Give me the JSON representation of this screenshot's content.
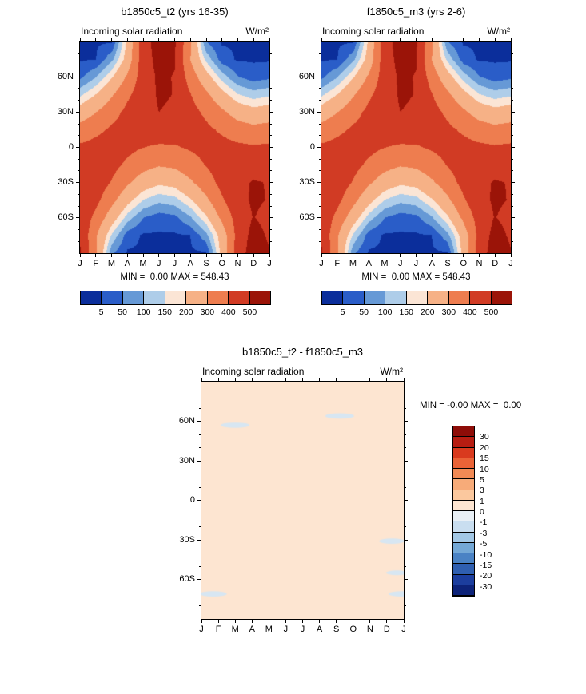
{
  "figure": {
    "background": "#ffffff"
  },
  "chart_data": [
    {
      "type": "heatmap",
      "title": "b1850c5_t2 (yrs 16-35)",
      "field": "Incoming solar radiation",
      "units": "W/m²",
      "minmax_text": "MIN =  0.00 MAX = 548.43",
      "min": 0.0,
      "max": 548.43,
      "x": [
        "J",
        "F",
        "M",
        "A",
        "M",
        "J",
        "J",
        "A",
        "S",
        "O",
        "N",
        "D",
        "J"
      ],
      "y_ticks": [
        {
          "label": "60N",
          "lat": 60
        },
        {
          "label": "30N",
          "lat": 30
        },
        {
          "label": "0",
          "lat": 0
        },
        {
          "label": "30S",
          "lat": -30
        },
        {
          "label": "60S",
          "lat": -60
        }
      ],
      "y_lats": [
        90,
        75,
        60,
        45,
        30,
        15,
        0,
        -15,
        -30,
        -45,
        -60,
        -75,
        -90
      ],
      "levels": [
        5,
        50,
        100,
        150,
        200,
        300,
        400,
        500
      ],
      "colors": [
        "#0b2e9b",
        "#2a5dc8",
        "#6699d6",
        "#aecde9",
        "#fbe5d5",
        "#f6b186",
        "#ee7d4f",
        "#d13b24",
        "#9b1408"
      ],
      "cbar_labels": [
        "5",
        "50",
        "100",
        "150",
        "200",
        "300",
        "400",
        "500"
      ],
      "values": [
        [
          0,
          0,
          0,
          220,
          470,
          532,
          512,
          315,
          51,
          0,
          0,
          0,
          0
        ],
        [
          0,
          5,
          87,
          238,
          462,
          526,
          506,
          300,
          137,
          26,
          0,
          0,
          0
        ],
        [
          38,
          98,
          194,
          317,
          452,
          515,
          496,
          355,
          236,
          128,
          53,
          26,
          38
        ],
        [
          139,
          203,
          289,
          383,
          458,
          510,
          498,
          404,
          320,
          229,
          155,
          123,
          139
        ],
        [
          244,
          299,
          365,
          425,
          462,
          500,
          488,
          434,
          382,
          319,
          258,
          229,
          244
        ],
        [
          340,
          378,
          415,
          440,
          445,
          452,
          445,
          437,
          419,
          387,
          349,
          329,
          340
        ],
        [
          418,
          433,
          438,
          425,
          401,
          388,
          391,
          411,
          428,
          430,
          420,
          411,
          418
        ],
        [
          471,
          459,
          430,
          382,
          334,
          308,
          318,
          359,
          405,
          445,
          465,
          471,
          471
        ],
        [
          497,
          456,
          394,
          315,
          247,
          215,
          228,
          285,
          355,
          430,
          482,
          505,
          497
        ],
        [
          496,
          425,
          330,
          227,
          149,
          115,
          130,
          193,
          281,
          387,
          472,
          512,
          496
        ],
        [
          477,
          370,
          244,
          126,
          51,
          25,
          36,
          93,
          188,
          321,
          441,
          503,
          477
        ],
        [
          489,
          309,
          143,
          25,
          0,
          0,
          0,
          5,
          82,
          241,
          433,
          532,
          489
        ],
        [
          506,
          314,
          58,
          0,
          0,
          0,
          0,
          0,
          0,
          228,
          448,
          548,
          506
        ]
      ]
    },
    {
      "type": "heatmap",
      "title": "f1850c5_m3 (yrs 2-6)",
      "field": "Incoming solar radiation",
      "units": "W/m²",
      "minmax_text": "MIN =  0.00 MAX = 548.43",
      "min": 0.0,
      "max": 548.43,
      "x": [
        "J",
        "F",
        "M",
        "A",
        "M",
        "J",
        "J",
        "A",
        "S",
        "O",
        "N",
        "D",
        "J"
      ],
      "y_ticks": [
        {
          "label": "60N",
          "lat": 60
        },
        {
          "label": "30N",
          "lat": 30
        },
        {
          "label": "0",
          "lat": 0
        },
        {
          "label": "30S",
          "lat": -30
        },
        {
          "label": "60S",
          "lat": -60
        }
      ],
      "y_lats": [
        90,
        75,
        60,
        45,
        30,
        15,
        0,
        -15,
        -30,
        -45,
        -60,
        -75,
        -90
      ],
      "levels": [
        5,
        50,
        100,
        150,
        200,
        300,
        400,
        500
      ],
      "colors": [
        "#0b2e9b",
        "#2a5dc8",
        "#6699d6",
        "#aecde9",
        "#fbe5d5",
        "#f6b186",
        "#ee7d4f",
        "#d13b24",
        "#9b1408"
      ],
      "cbar_labels": [
        "5",
        "50",
        "100",
        "150",
        "200",
        "300",
        "400",
        "500"
      ],
      "values": [
        [
          0,
          0,
          0,
          220,
          470,
          532,
          512,
          315,
          51,
          0,
          0,
          0,
          0
        ],
        [
          0,
          5,
          87,
          238,
          462,
          526,
          506,
          300,
          137,
          26,
          0,
          0,
          0
        ],
        [
          38,
          98,
          194,
          317,
          452,
          515,
          496,
          355,
          236,
          128,
          53,
          26,
          38
        ],
        [
          139,
          203,
          289,
          383,
          458,
          510,
          498,
          404,
          320,
          229,
          155,
          123,
          139
        ],
        [
          244,
          299,
          365,
          425,
          462,
          500,
          488,
          434,
          382,
          319,
          258,
          229,
          244
        ],
        [
          340,
          378,
          415,
          440,
          445,
          452,
          445,
          437,
          419,
          387,
          349,
          329,
          340
        ],
        [
          418,
          433,
          438,
          425,
          401,
          388,
          391,
          411,
          428,
          430,
          420,
          411,
          418
        ],
        [
          471,
          459,
          430,
          382,
          334,
          308,
          318,
          359,
          405,
          445,
          465,
          471,
          471
        ],
        [
          497,
          456,
          394,
          315,
          247,
          215,
          228,
          285,
          355,
          430,
          482,
          505,
          497
        ],
        [
          496,
          425,
          330,
          227,
          149,
          115,
          130,
          193,
          281,
          387,
          472,
          512,
          496
        ],
        [
          477,
          370,
          244,
          126,
          51,
          25,
          36,
          93,
          188,
          321,
          441,
          503,
          477
        ],
        [
          489,
          309,
          143,
          25,
          0,
          0,
          0,
          5,
          82,
          241,
          433,
          532,
          489
        ],
        [
          506,
          314,
          58,
          0,
          0,
          0,
          0,
          0,
          0,
          228,
          448,
          548,
          506
        ]
      ]
    },
    {
      "type": "heatmap-diff",
      "title": "b1850c5_t2 - f1850c5_m3",
      "field": "Incoming solar radiation",
      "units": "W/m²",
      "minmax_text": "MIN = -0.00 MAX =  0.00",
      "min": -0.0,
      "max": 0.0,
      "x": [
        "J",
        "F",
        "M",
        "A",
        "M",
        "J",
        "J",
        "A",
        "S",
        "O",
        "N",
        "D",
        "J"
      ],
      "y_ticks": [
        {
          "label": "60N",
          "lat": 60
        },
        {
          "label": "30N",
          "lat": 30
        },
        {
          "label": "0",
          "lat": 0
        },
        {
          "label": "30S",
          "lat": -30
        },
        {
          "label": "60S",
          "lat": -60
        }
      ],
      "levels": [
        30,
        20,
        15,
        10,
        5,
        3,
        1,
        0,
        -1,
        -3,
        -5,
        -10,
        -15,
        -20,
        -30
      ],
      "colors": [
        "#8e0d08",
        "#b71d12",
        "#d93a1e",
        "#ea6337",
        "#f28a55",
        "#f7ab79",
        "#fbc89e",
        "#fde5d1",
        "#e9f0f6",
        "#c9def0",
        "#a3c8e6",
        "#74a8d6",
        "#4a82c4",
        "#2f5fb0",
        "#1c3e9e",
        "#0d2379"
      ],
      "cbar_labels": [
        "30",
        "20",
        "15",
        "10",
        "5",
        "3",
        "1",
        "0",
        "-1",
        "-3",
        "-5",
        "-10",
        "-15",
        "-20",
        "-30"
      ],
      "flat_color": "#fde5d1",
      "streak_color": "#d7e6f2",
      "streaks": [
        {
          "month": 2.0,
          "lat": 57,
          "width_months": 1.7,
          "height_deg": 4
        },
        {
          "month": 8.2,
          "lat": 64,
          "width_months": 1.7,
          "height_deg": 4
        },
        {
          "month": 11.3,
          "lat": -31,
          "width_months": 1.5,
          "height_deg": 4
        },
        {
          "month": 11.6,
          "lat": -55,
          "width_months": 1.3,
          "height_deg": 3.5
        },
        {
          "month": 0.7,
          "lat": -71,
          "width_months": 1.6,
          "height_deg": 4
        },
        {
          "month": 11.9,
          "lat": -71,
          "width_months": 1.6,
          "height_deg": 4
        }
      ]
    }
  ]
}
